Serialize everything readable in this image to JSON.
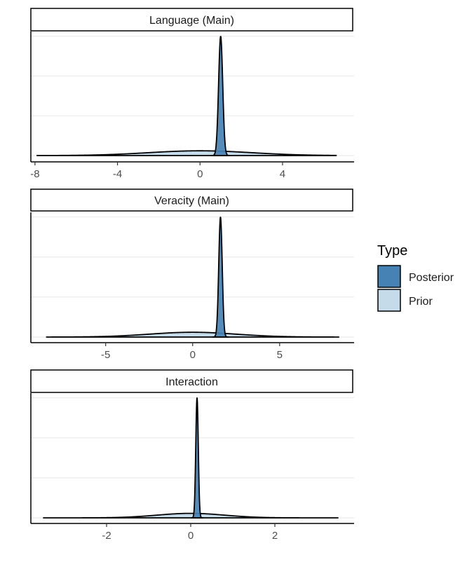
{
  "legend": {
    "title": "Type",
    "items": [
      {
        "label": "Posterior",
        "color": "#4682b4"
      },
      {
        "label": "Prior",
        "color": "#c6dbea"
      }
    ]
  },
  "chart_data": [
    {
      "type": "area",
      "title": "Language (Main)",
      "xlabel": "",
      "ylabel": "",
      "xticks": [
        -8,
        -4,
        0,
        4
      ],
      "xlim": [
        -8.2,
        7.4
      ],
      "grid": "horizontal",
      "prior": {
        "mean": 0,
        "sd": 2.5,
        "range": [
          -7.9,
          6.6
        ]
      },
      "posterior": {
        "mean": 1.0,
        "sd": 0.1
      },
      "series": [
        {
          "name": "Posterior",
          "color": "#4682b4"
        },
        {
          "name": "Prior",
          "color": "#c6dbea"
        }
      ]
    },
    {
      "type": "area",
      "title": "Veracity (Main)",
      "xlabel": "",
      "ylabel": "",
      "xticks": [
        -5,
        0,
        5
      ],
      "xlim": [
        -9.3,
        9.2
      ],
      "grid": "horizontal",
      "prior": {
        "mean": 0,
        "sd": 2.5,
        "range": [
          -8.4,
          8.4
        ]
      },
      "posterior": {
        "mean": 1.6,
        "sd": 0.1
      },
      "series": [
        {
          "name": "Posterior",
          "color": "#4682b4"
        },
        {
          "name": "Prior",
          "color": "#c6dbea"
        }
      ]
    },
    {
      "type": "area",
      "title": "Interaction",
      "xlabel": "",
      "ylabel": "",
      "xticks": [
        -2,
        0,
        2
      ],
      "xlim": [
        -3.8,
        3.85
      ],
      "grid": "horizontal",
      "prior": {
        "mean": 0,
        "sd": 0.8,
        "range": [
          -3.5,
          3.5
        ]
      },
      "posterior": {
        "mean": 0.15,
        "sd": 0.03
      },
      "series": [
        {
          "name": "Posterior",
          "color": "#4682b4"
        },
        {
          "name": "Prior",
          "color": "#c6dbea"
        }
      ]
    }
  ]
}
